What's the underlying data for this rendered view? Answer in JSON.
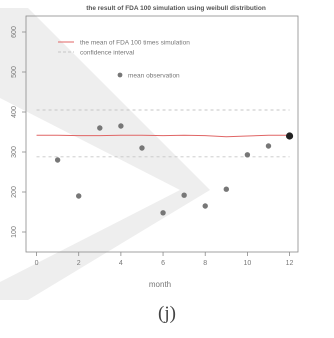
{
  "caption": "(j)",
  "chart_data": {
    "type": "scatter",
    "title": "the result of FDA 100 simulation using weibull distribution",
    "xlabel": "month",
    "ylabel": "",
    "xlim": [
      -0.5,
      12.4
    ],
    "ylim": [
      50,
      640
    ],
    "xticks": [
      0,
      2,
      4,
      6,
      8,
      10,
      12
    ],
    "yticks": [
      100,
      200,
      300,
      400,
      500,
      600
    ],
    "grid": false,
    "legend_position": "top-left",
    "legend": [
      "the mean of FDA 100 times simulation",
      "confidence interval",
      "mean observation"
    ],
    "series": [
      {
        "name": "the mean of FDA 100 times simulation",
        "kind": "line",
        "color": "#e06666",
        "x": [
          0,
          1,
          2,
          3,
          4,
          5,
          6,
          7,
          8,
          9,
          10,
          11,
          12
        ],
        "y": [
          342,
          342,
          341,
          341,
          342,
          342,
          341,
          342,
          341,
          338,
          340,
          342,
          342
        ]
      },
      {
        "name": "confidence interval",
        "kind": "dashed",
        "color": "#c6c6c6",
        "x": [
          0,
          12
        ],
        "y": [
          405,
          405
        ]
      },
      {
        "name": "",
        "kind": "dashed",
        "color": "#c6c6c6",
        "x": [
          0,
          12
        ],
        "y": [
          288,
          288
        ]
      },
      {
        "name": "mean observation",
        "kind": "points",
        "color": "#777777",
        "x": [
          1,
          2,
          3,
          4,
          5,
          6,
          7,
          8,
          9,
          10,
          11,
          12
        ],
        "y": [
          280,
          190,
          360,
          365,
          310,
          148,
          192,
          165,
          207,
          293,
          315,
          340
        ]
      }
    ]
  },
  "colors": {
    "axis": "#8a8a8a",
    "text": "#777777",
    "watermark": "#eeeeee"
  }
}
